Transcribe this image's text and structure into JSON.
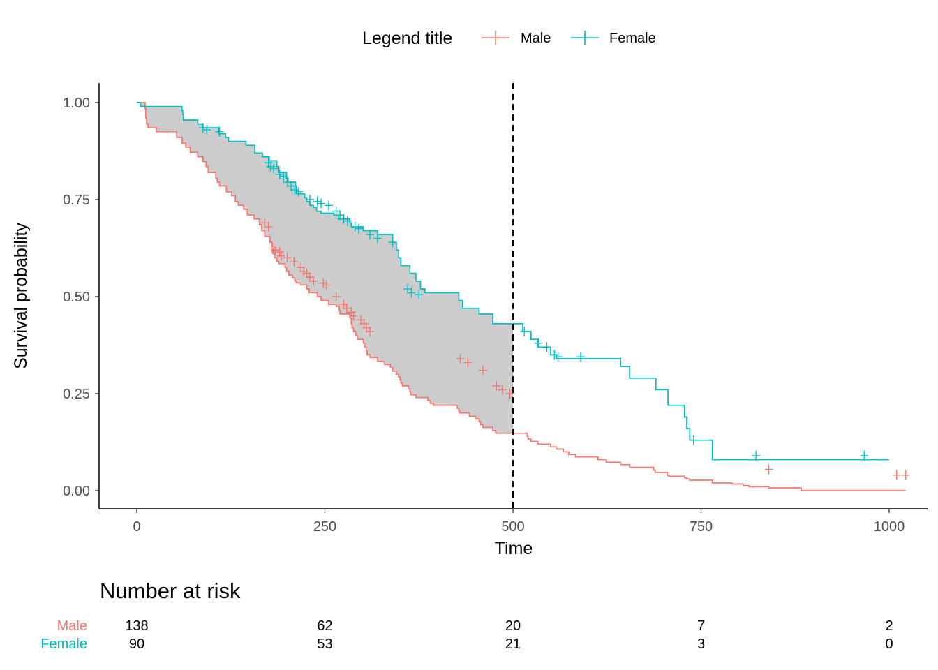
{
  "chart_data": {
    "type": "line",
    "subtype": "kaplan-meier survival curve",
    "xlabel": "Time",
    "ylabel": "Survival probability",
    "xlim": [
      0,
      1025
    ],
    "ylim": [
      0,
      1
    ],
    "x_ticks": [
      0,
      250,
      500,
      750,
      1000
    ],
    "x_tick_labels": [
      "0",
      "250",
      "500",
      "750",
      "1000"
    ],
    "y_ticks": [
      0,
      0.25,
      0.5,
      0.75,
      1.0
    ],
    "y_tick_labels": [
      "0.00",
      "0.25",
      "0.50",
      "0.75",
      "1.00"
    ],
    "grid": false,
    "legend": {
      "title": "Legend title",
      "position": "top",
      "entries": [
        "Male",
        "Female"
      ]
    },
    "reference_line": {
      "x": 500,
      "style": "dashed",
      "color": "#000000"
    },
    "shaded_region": {
      "between": [
        "Male",
        "Female"
      ],
      "x_range": [
        0,
        500
      ],
      "color": "#cccccc"
    },
    "series": [
      {
        "name": "Male",
        "color": "#F8766D",
        "steps": [
          [
            0,
            1.0
          ],
          [
            11,
            0.985
          ],
          [
            12,
            0.96
          ],
          [
            13,
            0.945
          ],
          [
            15,
            0.935
          ],
          [
            26,
            0.925
          ],
          [
            53,
            0.91
          ],
          [
            60,
            0.895
          ],
          [
            65,
            0.885
          ],
          [
            71,
            0.872
          ],
          [
            81,
            0.86
          ],
          [
            88,
            0.848
          ],
          [
            92,
            0.835
          ],
          [
            95,
            0.82
          ],
          [
            105,
            0.805
          ],
          [
            107,
            0.795
          ],
          [
            110,
            0.785
          ],
          [
            119,
            0.77
          ],
          [
            126,
            0.76
          ],
          [
            131,
            0.745
          ],
          [
            135,
            0.735
          ],
          [
            142,
            0.725
          ],
          [
            147,
            0.71
          ],
          [
            156,
            0.7
          ],
          [
            163,
            0.685
          ],
          [
            166,
            0.67
          ],
          [
            170,
            0.655
          ],
          [
            177,
            0.64
          ],
          [
            180,
            0.625
          ],
          [
            181,
            0.61
          ],
          [
            183,
            0.6
          ],
          [
            186,
            0.59
          ],
          [
            189,
            0.585
          ],
          [
            197,
            0.575
          ],
          [
            199,
            0.565
          ],
          [
            202,
            0.555
          ],
          [
            207,
            0.548
          ],
          [
            210,
            0.54
          ],
          [
            212,
            0.535
          ],
          [
            218,
            0.53
          ],
          [
            226,
            0.52
          ],
          [
            229,
            0.51
          ],
          [
            240,
            0.5
          ],
          [
            245,
            0.49
          ],
          [
            255,
            0.48
          ],
          [
            265,
            0.475
          ],
          [
            269,
            0.465
          ],
          [
            270,
            0.455
          ],
          [
            283,
            0.445
          ],
          [
            285,
            0.43
          ],
          [
            286,
            0.42
          ],
          [
            288,
            0.41
          ],
          [
            291,
            0.4
          ],
          [
            293,
            0.39
          ],
          [
            301,
            0.38
          ],
          [
            303,
            0.37
          ],
          [
            305,
            0.36
          ],
          [
            306,
            0.35
          ],
          [
            310,
            0.343
          ],
          [
            320,
            0.333
          ],
          [
            329,
            0.325
          ],
          [
            337,
            0.317
          ],
          [
            340,
            0.308
          ],
          [
            345,
            0.3
          ],
          [
            348,
            0.293
          ],
          [
            350,
            0.285
          ],
          [
            351,
            0.277
          ],
          [
            353,
            0.27
          ],
          [
            361,
            0.263
          ],
          [
            363,
            0.255
          ],
          [
            364,
            0.247
          ],
          [
            371,
            0.24
          ],
          [
            387,
            0.232
          ],
          [
            390,
            0.225
          ],
          [
            394,
            0.22
          ],
          [
            426,
            0.212
          ],
          [
            428,
            0.205
          ],
          [
            429,
            0.2
          ],
          [
            442,
            0.192
          ],
          [
            450,
            0.185
          ],
          [
            455,
            0.178
          ],
          [
            457,
            0.17
          ],
          [
            460,
            0.163
          ],
          [
            473,
            0.155
          ],
          [
            477,
            0.148
          ],
          [
            519,
            0.14
          ],
          [
            520,
            0.133
          ],
          [
            524,
            0.127
          ],
          [
            533,
            0.12
          ],
          [
            550,
            0.113
          ],
          [
            558,
            0.107
          ],
          [
            567,
            0.1
          ],
          [
            574,
            0.093
          ],
          [
            583,
            0.087
          ],
          [
            613,
            0.08
          ],
          [
            624,
            0.073
          ],
          [
            643,
            0.067
          ],
          [
            655,
            0.06
          ],
          [
            687,
            0.053
          ],
          [
            689,
            0.047
          ],
          [
            705,
            0.04
          ],
          [
            707,
            0.037
          ],
          [
            728,
            0.033
          ],
          [
            731,
            0.03
          ],
          [
            735,
            0.027
          ],
          [
            765,
            0.02
          ],
          [
            791,
            0.017
          ],
          [
            806,
            0.013
          ],
          [
            814,
            0.01
          ],
          [
            840,
            0.007
          ],
          [
            883,
            0.0
          ]
        ],
        "censored": [
          [
            170,
            0.69
          ],
          [
            175,
            0.68
          ],
          [
            180,
            0.625
          ],
          [
            184,
            0.62
          ],
          [
            190,
            0.615
          ],
          [
            192,
            0.605
          ],
          [
            200,
            0.6
          ],
          [
            209,
            0.59
          ],
          [
            218,
            0.575
          ],
          [
            222,
            0.565
          ],
          [
            226,
            0.56
          ],
          [
            230,
            0.55
          ],
          [
            235,
            0.54
          ],
          [
            248,
            0.535
          ],
          [
            252,
            0.53
          ],
          [
            265,
            0.5
          ],
          [
            275,
            0.48
          ],
          [
            279,
            0.47
          ],
          [
            285,
            0.46
          ],
          [
            288,
            0.45
          ],
          [
            298,
            0.44
          ],
          [
            302,
            0.43
          ],
          [
            305,
            0.42
          ],
          [
            310,
            0.41
          ],
          [
            430,
            0.34
          ],
          [
            440,
            0.33
          ],
          [
            460,
            0.31
          ],
          [
            478,
            0.27
          ],
          [
            486,
            0.26
          ],
          [
            496,
            0.25
          ],
          [
            840,
            0.055
          ],
          [
            1010,
            0.04
          ],
          [
            1022,
            0.04
          ]
        ]
      },
      {
        "name": "Female",
        "color": "#00BFC4",
        "steps": [
          [
            0,
            1.0
          ],
          [
            5,
            0.99
          ],
          [
            60,
            0.98
          ],
          [
            61,
            0.97
          ],
          [
            62,
            0.955
          ],
          [
            81,
            0.945
          ],
          [
            88,
            0.935
          ],
          [
            109,
            0.92
          ],
          [
            118,
            0.91
          ],
          [
            122,
            0.9
          ],
          [
            145,
            0.89
          ],
          [
            157,
            0.87
          ],
          [
            167,
            0.86
          ],
          [
            176,
            0.85
          ],
          [
            186,
            0.835
          ],
          [
            189,
            0.82
          ],
          [
            199,
            0.805
          ],
          [
            201,
            0.795
          ],
          [
            211,
            0.785
          ],
          [
            212,
            0.765
          ],
          [
            223,
            0.755
          ],
          [
            226,
            0.745
          ],
          [
            230,
            0.735
          ],
          [
            235,
            0.73
          ],
          [
            239,
            0.72
          ],
          [
            245,
            0.715
          ],
          [
            262,
            0.71
          ],
          [
            268,
            0.7
          ],
          [
            283,
            0.69
          ],
          [
            285,
            0.68
          ],
          [
            301,
            0.67
          ],
          [
            320,
            0.66
          ],
          [
            340,
            0.64
          ],
          [
            345,
            0.62
          ],
          [
            348,
            0.6
          ],
          [
            351,
            0.58
          ],
          [
            363,
            0.56
          ],
          [
            371,
            0.54
          ],
          [
            377,
            0.52
          ],
          [
            383,
            0.51
          ],
          [
            428,
            0.49
          ],
          [
            433,
            0.47
          ],
          [
            455,
            0.455
          ],
          [
            473,
            0.43
          ],
          [
            513,
            0.41
          ],
          [
            524,
            0.39
          ],
          [
            533,
            0.37
          ],
          [
            550,
            0.35
          ],
          [
            558,
            0.34
          ],
          [
            567,
            0.34
          ],
          [
            640,
            0.34
          ],
          [
            643,
            0.32
          ],
          [
            655,
            0.29
          ],
          [
            690,
            0.26
          ],
          [
            706,
            0.22
          ],
          [
            728,
            0.19
          ],
          [
            731,
            0.16
          ],
          [
            735,
            0.13
          ],
          [
            765,
            0.08
          ],
          [
            1000,
            0.08
          ]
        ],
        "censored": [
          [
            88,
            0.935
          ],
          [
            93,
            0.93
          ],
          [
            110,
            0.925
          ],
          [
            175,
            0.845
          ],
          [
            178,
            0.835
          ],
          [
            182,
            0.83
          ],
          [
            190,
            0.815
          ],
          [
            195,
            0.81
          ],
          [
            200,
            0.795
          ],
          [
            205,
            0.785
          ],
          [
            210,
            0.775
          ],
          [
            215,
            0.77
          ],
          [
            230,
            0.75
          ],
          [
            240,
            0.745
          ],
          [
            245,
            0.74
          ],
          [
            255,
            0.735
          ],
          [
            265,
            0.72
          ],
          [
            270,
            0.71
          ],
          [
            275,
            0.7
          ],
          [
            280,
            0.695
          ],
          [
            290,
            0.68
          ],
          [
            295,
            0.675
          ],
          [
            310,
            0.66
          ],
          [
            320,
            0.65
          ],
          [
            340,
            0.64
          ],
          [
            360,
            0.52
          ],
          [
            365,
            0.51
          ],
          [
            375,
            0.505
          ],
          [
            515,
            0.41
          ],
          [
            534,
            0.38
          ],
          [
            545,
            0.37
          ],
          [
            555,
            0.35
          ],
          [
            560,
            0.345
          ],
          [
            590,
            0.345
          ],
          [
            740,
            0.13
          ],
          [
            823,
            0.09
          ],
          [
            967,
            0.09
          ]
        ]
      }
    ]
  },
  "risk_table": {
    "title": "Number at risk",
    "times": [
      0,
      250,
      500,
      750,
      1000
    ],
    "rows": [
      {
        "label": "Male",
        "color": "#F8766D",
        "counts": [
          "138",
          "62",
          "20",
          "7",
          "2"
        ]
      },
      {
        "label": "Female",
        "color": "#00BFC4",
        "counts": [
          "90",
          "53",
          "21",
          "3",
          "0"
        ]
      }
    ]
  }
}
